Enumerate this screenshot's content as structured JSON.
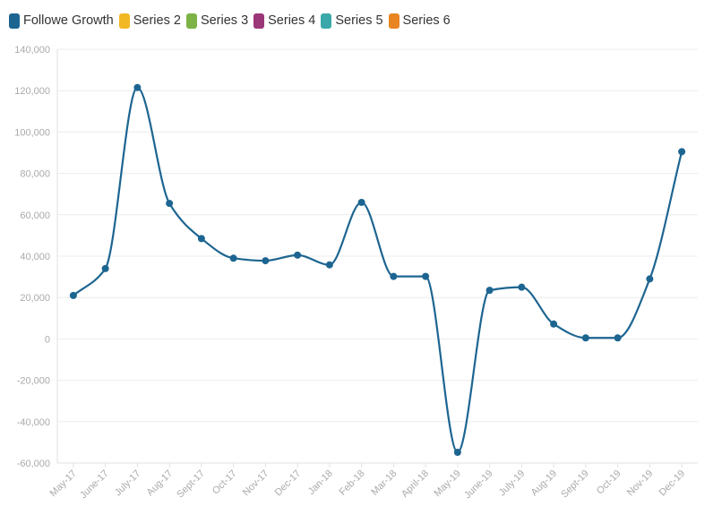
{
  "legend": {
    "items": [
      {
        "label": "Followe Growth",
        "color": "#1d6591"
      },
      {
        "label": "Series 2",
        "color": "#f2b824"
      },
      {
        "label": "Series 3",
        "color": "#7db346"
      },
      {
        "label": "Series 4",
        "color": "#9b3678"
      },
      {
        "label": "Series 5",
        "color": "#3aa8a8"
      },
      {
        "label": "Series 6",
        "color": "#e88521"
      }
    ]
  },
  "chart_data": {
    "type": "line",
    "title": "",
    "xlabel": "",
    "ylabel": "",
    "ylim": [
      -60000,
      140000
    ],
    "yticks": [
      -60000,
      -40000,
      -20000,
      0,
      20000,
      40000,
      60000,
      80000,
      100000,
      120000,
      140000
    ],
    "ytick_labels": [
      "-60,000",
      "-40,000",
      "-20,000",
      "0",
      "20,000",
      "40,000",
      "60,000",
      "80,000",
      "100,000",
      "120,000",
      "140,000"
    ],
    "categories": [
      "May-17",
      "June-17",
      "July-17",
      "Aug-17",
      "Sept-17",
      "Oct-17",
      "Nov-17",
      "Dec-17",
      "Jan-18",
      "Feb-18",
      "Mar-18",
      "April-18",
      "May-19",
      "June-19",
      "July-19",
      "Aug-19",
      "Sept-19",
      "Oct-19",
      "Nov-19",
      "Dec-19"
    ],
    "grid": true,
    "legend_position": "top-left",
    "series": [
      {
        "name": "Followe Growth",
        "color": "#1d6591",
        "values": [
          21000,
          34000,
          121500,
          65500,
          48500,
          39000,
          37800,
          40500,
          35800,
          66000,
          30200,
          30200,
          -54800,
          23500,
          25000,
          7200,
          500,
          500,
          29000,
          90500
        ]
      }
    ]
  }
}
